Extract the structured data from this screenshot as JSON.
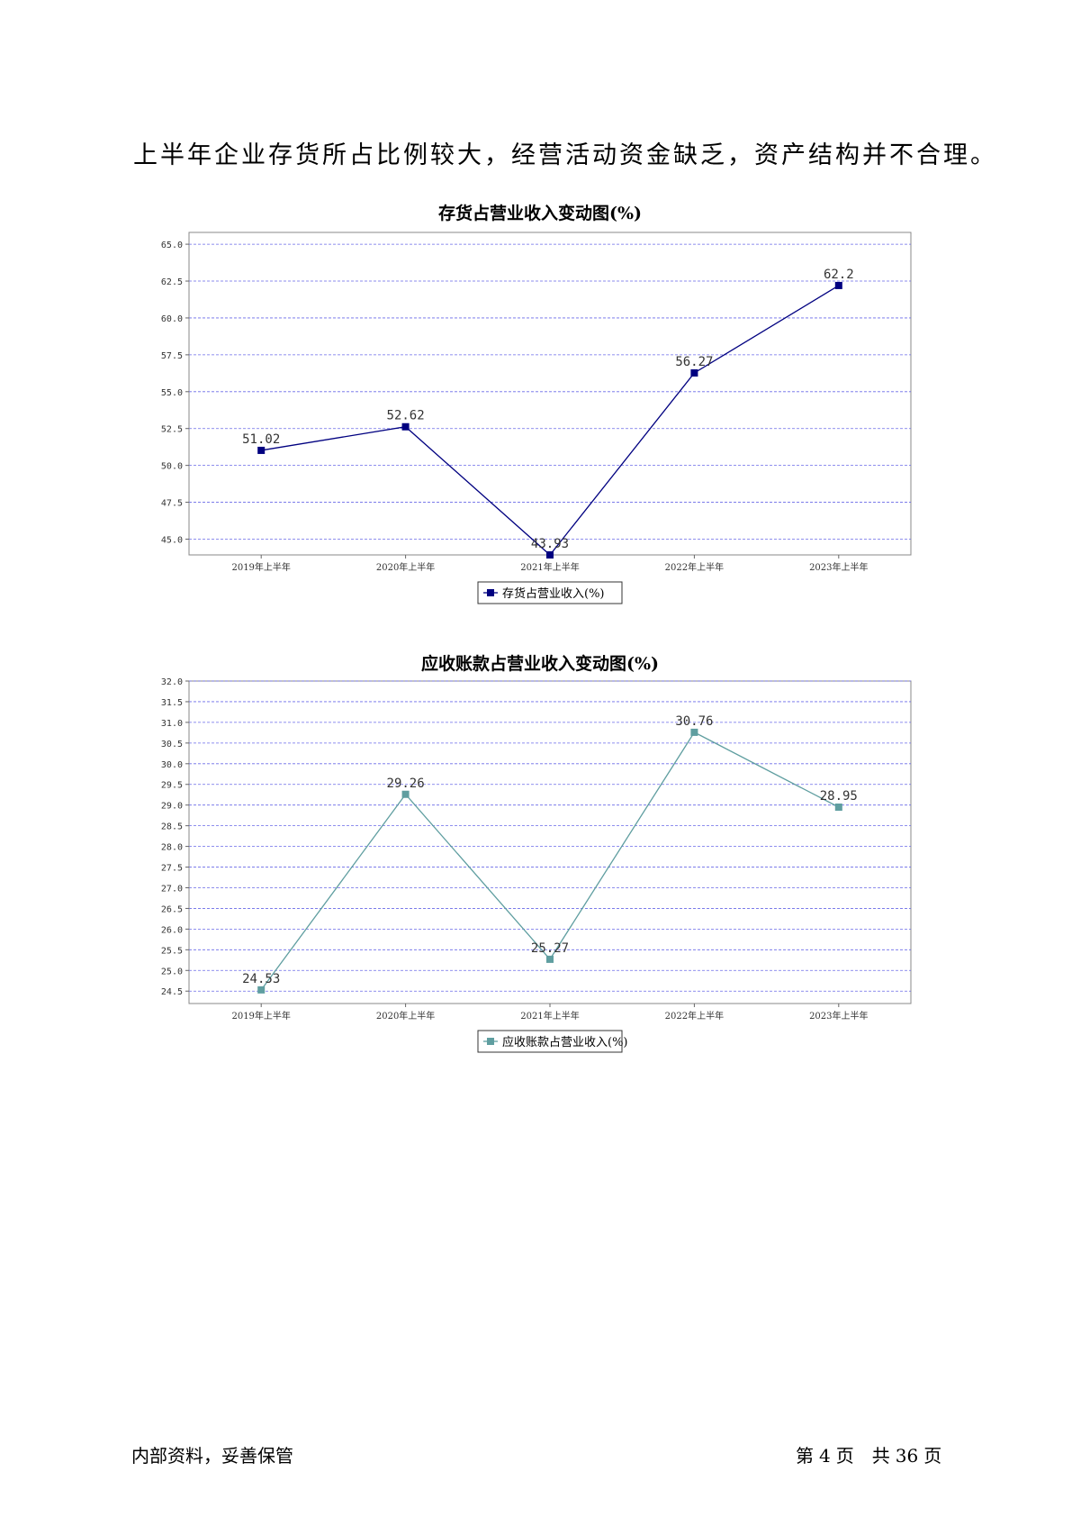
{
  "intro_text": "上半年企业存货所占比例较大，经营活动资金缺乏，资产结构并不合理。",
  "charts": [
    {
      "color": "#000080",
      "chart_data": {
        "type": "line",
        "title": "存货占营业收入变动图(%)",
        "categories": [
          "2019年上半年",
          "2020年上半年",
          "2021年上半年",
          "2022年上半年",
          "2023年上半年"
        ],
        "series": [
          {
            "name": "存货占营业收入(%)",
            "values": [
              51.02,
              52.62,
              43.93,
              56.27,
              62.2
            ]
          }
        ],
        "data_labels": [
          "51.02",
          "52.62",
          "43.93",
          "56.27",
          "62.2"
        ],
        "yticks": [
          "45.0",
          "47.5",
          "50.0",
          "52.5",
          "55.0",
          "57.5",
          "60.0",
          "62.5",
          "65.0"
        ],
        "ylim": [
          43.93,
          65.8
        ],
        "grid": true,
        "legend": "bottom"
      }
    },
    {
      "color": "#5f9ea0",
      "chart_data": {
        "type": "line",
        "title": "应收账款占营业收入变动图(%)",
        "categories": [
          "2019年上半年",
          "2020年上半年",
          "2021年上半年",
          "2022年上半年",
          "2023年上半年"
        ],
        "series": [
          {
            "name": "应收账款占营业收入(%)",
            "values": [
              24.53,
              29.26,
              25.27,
              30.76,
              28.95
            ]
          }
        ],
        "data_labels": [
          "24.53",
          "29.26",
          "25.27",
          "30.76",
          "28.95"
        ],
        "yticks": [
          "24.5",
          "25.0",
          "25.5",
          "26.0",
          "26.5",
          "27.0",
          "27.5",
          "28.0",
          "28.5",
          "29.0",
          "29.5",
          "30.0",
          "30.5",
          "31.0",
          "31.5",
          "32.0"
        ],
        "ylim": [
          24.2,
          32.0
        ],
        "grid": true,
        "legend": "bottom"
      }
    }
  ],
  "footer": {
    "left": "内部资料，妥善保管",
    "page_label_prefix": "第",
    "page_number": "4",
    "page_label_suffix": "页",
    "total_prefix": "共",
    "total_pages": "36",
    "total_suffix": "页"
  }
}
